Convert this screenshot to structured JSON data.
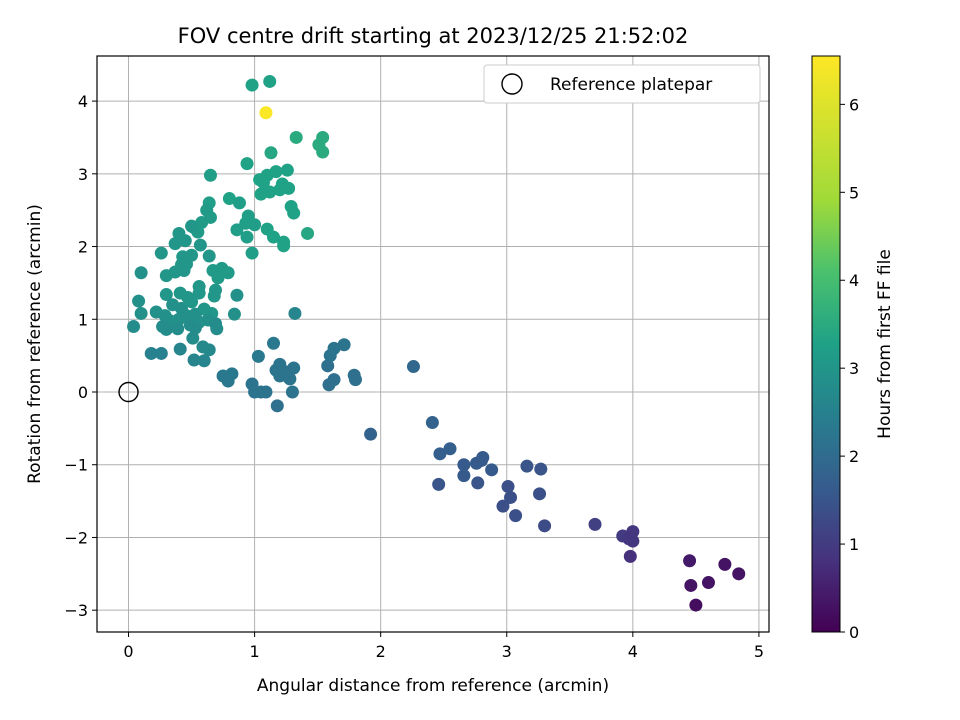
{
  "chart_data": {
    "type": "scatter",
    "title": "FOV centre drift starting at 2023/12/25 21:52:02",
    "xlabel": "Angular distance from reference (arcmin)",
    "ylabel": "Rotation from reference (arcmin)",
    "xlim": [
      -0.25,
      5.08
    ],
    "ylim": [
      -3.3,
      4.62
    ],
    "xticks": [
      0,
      1,
      2,
      3,
      4,
      5
    ],
    "xtick_labels": [
      "0",
      "1",
      "2",
      "3",
      "4",
      "5"
    ],
    "yticks": [
      -3,
      -2,
      -1,
      0,
      1,
      2,
      3,
      4
    ],
    "ytick_labels": [
      "−3",
      "−2",
      "−1",
      "0",
      "1",
      "2",
      "3",
      "4"
    ],
    "grid": true,
    "legend": {
      "position": "top-right",
      "entries": [
        "Reference platepar"
      ]
    },
    "colormap": "viridis",
    "colorbar": {
      "label": "Hours from first FF file",
      "min": 0,
      "max": 6.55,
      "ticks": [
        0,
        1,
        2,
        3,
        4,
        5,
        6
      ],
      "tick_labels": [
        "0",
        "1",
        "2",
        "3",
        "4",
        "5",
        "6"
      ]
    },
    "series": [
      {
        "name": "Reference platepar",
        "marker": "hollow-circle",
        "points": [
          [
            0,
            0
          ]
        ]
      },
      {
        "marker": "filled-circle",
        "points": [
          [
            0.98,
            4.22,
            3.3
          ],
          [
            1.12,
            4.27,
            3.3
          ],
          [
            1.09,
            3.84,
            6.5
          ],
          [
            1.33,
            3.5,
            3.5
          ],
          [
            1.54,
            3.5,
            3.5
          ],
          [
            1.51,
            3.4,
            3.5
          ],
          [
            1.54,
            3.3,
            3.5
          ],
          [
            1.13,
            3.29,
            3.4
          ],
          [
            0.94,
            3.14,
            3.3
          ],
          [
            1.17,
            3.03,
            3.3
          ],
          [
            1.26,
            3.05,
            3.3
          ],
          [
            1.1,
            2.98,
            3.3
          ],
          [
            1.04,
            2.92,
            3.3
          ],
          [
            1.07,
            2.88,
            3.3
          ],
          [
            0.65,
            2.98,
            3.2
          ],
          [
            1.22,
            2.86,
            3.3
          ],
          [
            1.27,
            2.8,
            3.3
          ],
          [
            1.2,
            2.78,
            3.3
          ],
          [
            1.12,
            2.75,
            3.3
          ],
          [
            1.05,
            2.72,
            3.3
          ],
          [
            0.8,
            2.66,
            3.3
          ],
          [
            0.88,
            2.6,
            3.2
          ],
          [
            1.29,
            2.55,
            3.3
          ],
          [
            1.31,
            2.46,
            3.3
          ],
          [
            0.64,
            2.6,
            3.2
          ],
          [
            0.62,
            2.5,
            3.1
          ],
          [
            0.65,
            2.4,
            3.1
          ],
          [
            0.95,
            2.42,
            3.2
          ],
          [
            0.93,
            2.32,
            3.2
          ],
          [
            1.0,
            2.3,
            3.2
          ],
          [
            0.58,
            2.33,
            3.1
          ],
          [
            0.52,
            2.26,
            3.1
          ],
          [
            0.55,
            2.2,
            3.1
          ],
          [
            0.86,
            2.23,
            3.2
          ],
          [
            0.94,
            2.13,
            3.2
          ],
          [
            1.1,
            2.24,
            3.3
          ],
          [
            1.15,
            2.13,
            3.3
          ],
          [
            1.23,
            2.06,
            3.3
          ],
          [
            1.23,
            2.01,
            3.3
          ],
          [
            1.42,
            2.18,
            3.4
          ],
          [
            0.98,
            1.91,
            3.2
          ],
          [
            0.4,
            2.18,
            3.0
          ],
          [
            0.5,
            2.28,
            3.0
          ],
          [
            0.37,
            2.04,
            3.0
          ],
          [
            0.45,
            2.08,
            3.0
          ],
          [
            0.57,
            2.02,
            3.0
          ],
          [
            0.26,
            1.91,
            3.0
          ],
          [
            0.43,
            1.86,
            3.0
          ],
          [
            0.5,
            1.88,
            3.0
          ],
          [
            0.64,
            1.87,
            3.0
          ],
          [
            0.46,
            1.76,
            3.0
          ],
          [
            0.44,
            1.67,
            3.0
          ],
          [
            0.67,
            1.67,
            3.1
          ],
          [
            0.74,
            1.7,
            3.1
          ],
          [
            0.79,
            1.64,
            3.1
          ],
          [
            0.71,
            1.57,
            3.1
          ],
          [
            0.3,
            1.6,
            3.0
          ],
          [
            0.37,
            1.65,
            3.0
          ],
          [
            0.42,
            1.75,
            3.0
          ],
          [
            0.1,
            1.64,
            2.9
          ],
          [
            0.56,
            1.45,
            3.0
          ],
          [
            0.69,
            1.4,
            3.0
          ],
          [
            0.41,
            1.36,
            3.0
          ],
          [
            0.3,
            1.34,
            3.0
          ],
          [
            0.47,
            1.3,
            3.0
          ],
          [
            0.56,
            1.36,
            3.0
          ],
          [
            0.68,
            1.32,
            3.0
          ],
          [
            0.86,
            1.33,
            2.9
          ],
          [
            0.08,
            1.25,
            2.9
          ],
          [
            0.22,
            1.1,
            2.9
          ],
          [
            0.1,
            1.08,
            2.9
          ],
          [
            0.35,
            1.2,
            2.9
          ],
          [
            0.42,
            1.15,
            2.9
          ],
          [
            0.5,
            1.24,
            3.0
          ],
          [
            0.6,
            1.14,
            3.0
          ],
          [
            0.66,
            1.08,
            3.0
          ],
          [
            0.29,
            1.05,
            2.9
          ],
          [
            0.33,
            0.98,
            2.9
          ],
          [
            0.4,
            1.0,
            2.9
          ],
          [
            0.46,
            1.05,
            2.9
          ],
          [
            0.53,
            1.07,
            2.9
          ],
          [
            0.56,
            0.96,
            2.9
          ],
          [
            0.63,
            0.99,
            2.9
          ],
          [
            0.84,
            1.07,
            2.9
          ],
          [
            0.04,
            0.9,
            2.8
          ],
          [
            0.27,
            0.9,
            2.8
          ],
          [
            0.3,
            0.86,
            2.8
          ],
          [
            0.39,
            0.87,
            2.8
          ],
          [
            0.49,
            0.92,
            2.8
          ],
          [
            0.53,
            0.88,
            2.8
          ],
          [
            0.69,
            0.94,
            2.8
          ],
          [
            0.7,
            0.87,
            2.8
          ],
          [
            0.51,
            0.74,
            2.8
          ],
          [
            0.59,
            0.62,
            2.7
          ],
          [
            0.64,
            0.58,
            2.7
          ],
          [
            0.41,
            0.59,
            2.6
          ],
          [
            0.18,
            0.53,
            2.5
          ],
          [
            0.26,
            0.53,
            2.5
          ],
          [
            0.52,
            0.44,
            2.6
          ],
          [
            0.6,
            0.43,
            2.6
          ],
          [
            1.32,
            1.08,
            2.6
          ],
          [
            0.75,
            0.22,
            2.3
          ],
          [
            0.82,
            0.25,
            2.3
          ],
          [
            0.79,
            0.15,
            2.3
          ],
          [
            0.98,
            0.11,
            2.2
          ],
          [
            1.0,
            0.0,
            2.2
          ],
          [
            1.05,
            0.0,
            2.2
          ],
          [
            1.09,
            0.0,
            2.2
          ],
          [
            1.03,
            0.49,
            2.3
          ],
          [
            1.15,
            0.67,
            2.3
          ],
          [
            1.2,
            0.38,
            2.2
          ],
          [
            1.17,
            0.3,
            2.2
          ],
          [
            1.2,
            0.22,
            2.2
          ],
          [
            1.24,
            0.28,
            2.2
          ],
          [
            1.27,
            0.2,
            2.2
          ],
          [
            1.31,
            0.33,
            2.2
          ],
          [
            1.28,
            0.18,
            2.2
          ],
          [
            1.3,
            0.0,
            2.2
          ],
          [
            1.18,
            -0.19,
            2.1
          ],
          [
            1.6,
            0.5,
            2.2
          ],
          [
            1.63,
            0.6,
            2.2
          ],
          [
            1.71,
            0.65,
            2.2
          ],
          [
            1.58,
            0.36,
            2.1
          ],
          [
            1.79,
            0.23,
            2.1
          ],
          [
            1.8,
            0.17,
            2.1
          ],
          [
            1.63,
            0.17,
            2.1
          ],
          [
            1.59,
            0.1,
            2.1
          ],
          [
            2.26,
            0.35,
            1.9
          ],
          [
            1.92,
            -0.58,
            1.8
          ],
          [
            2.41,
            -0.42,
            1.8
          ],
          [
            2.47,
            -0.85,
            1.7
          ],
          [
            2.55,
            -0.78,
            1.7
          ],
          [
            2.66,
            -1.0,
            1.6
          ],
          [
            2.66,
            -1.15,
            1.6
          ],
          [
            2.76,
            -0.98,
            1.6
          ],
          [
            2.8,
            -0.94,
            1.6
          ],
          [
            2.81,
            -0.9,
            1.6
          ],
          [
            2.88,
            -1.07,
            1.6
          ],
          [
            2.77,
            -1.25,
            1.5
          ],
          [
            2.46,
            -1.27,
            1.5
          ],
          [
            3.01,
            -1.3,
            1.4
          ],
          [
            3.03,
            -1.45,
            1.4
          ],
          [
            2.97,
            -1.57,
            1.4
          ],
          [
            3.07,
            -1.7,
            1.4
          ],
          [
            3.16,
            -1.02,
            1.5
          ],
          [
            3.27,
            -1.06,
            1.5
          ],
          [
            3.26,
            -1.4,
            1.4
          ],
          [
            3.3,
            -1.84,
            1.3
          ],
          [
            3.7,
            -1.82,
            1.1
          ],
          [
            3.92,
            -1.98,
            1.0
          ],
          [
            3.97,
            -2.02,
            0.9
          ],
          [
            4.0,
            -1.92,
            0.9
          ],
          [
            4.0,
            -2.05,
            0.9
          ],
          [
            3.98,
            -2.26,
            0.8
          ],
          [
            4.45,
            -2.32,
            0.4
          ],
          [
            4.46,
            -2.66,
            0.3
          ],
          [
            4.6,
            -2.62,
            0.3
          ],
          [
            4.73,
            -2.37,
            0.3
          ],
          [
            4.84,
            -2.5,
            0.3
          ],
          [
            4.5,
            -2.93,
            0.2
          ]
        ]
      }
    ]
  }
}
